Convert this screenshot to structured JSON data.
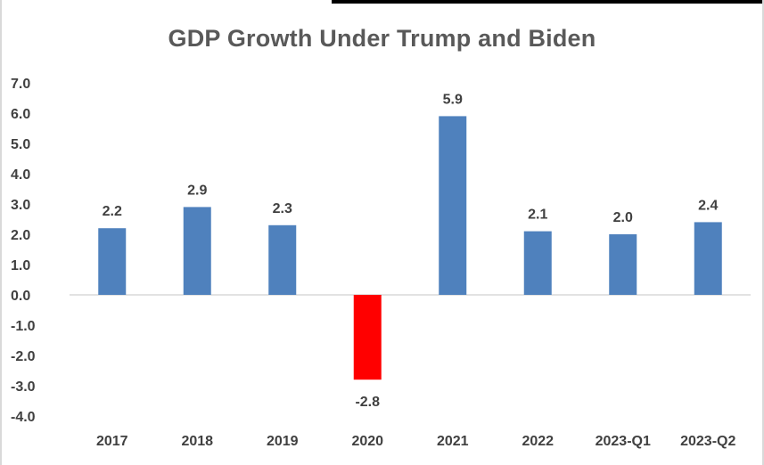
{
  "chart_data": {
    "type": "bar",
    "title": "GDP Growth Under Trump and Biden",
    "xlabel": "",
    "ylabel": "",
    "categories": [
      "2017",
      "2018",
      "2019",
      "2020",
      "2021",
      "2022",
      "2023-Q1",
      "2023-Q2"
    ],
    "values": [
      2.2,
      2.9,
      2.3,
      -2.8,
      5.9,
      2.1,
      2.0,
      2.4
    ],
    "value_labels": [
      "2.2",
      "2.9",
      "2.3",
      "-2.8",
      "5.9",
      "2.1",
      "2.0",
      "2.4"
    ],
    "ylim": [
      -4.0,
      7.0
    ],
    "yticks": [
      7.0,
      6.0,
      5.0,
      4.0,
      3.0,
      2.0,
      1.0,
      0.0,
      -1.0,
      -2.0,
      -3.0,
      -4.0
    ],
    "ytick_labels": [
      "7.0",
      "6.0",
      "5.0",
      "4.0",
      "3.0",
      "2.0",
      "1.0",
      "0.0",
      "-1.0",
      "-2.0",
      "-3.0",
      "-4.0"
    ],
    "grid": false,
    "legend": "none",
    "colors": {
      "positive": "#4f81bd",
      "negative": "#ff0000",
      "zero_line": "#d9d9d9",
      "text": "#404040",
      "title": "#595959"
    }
  }
}
